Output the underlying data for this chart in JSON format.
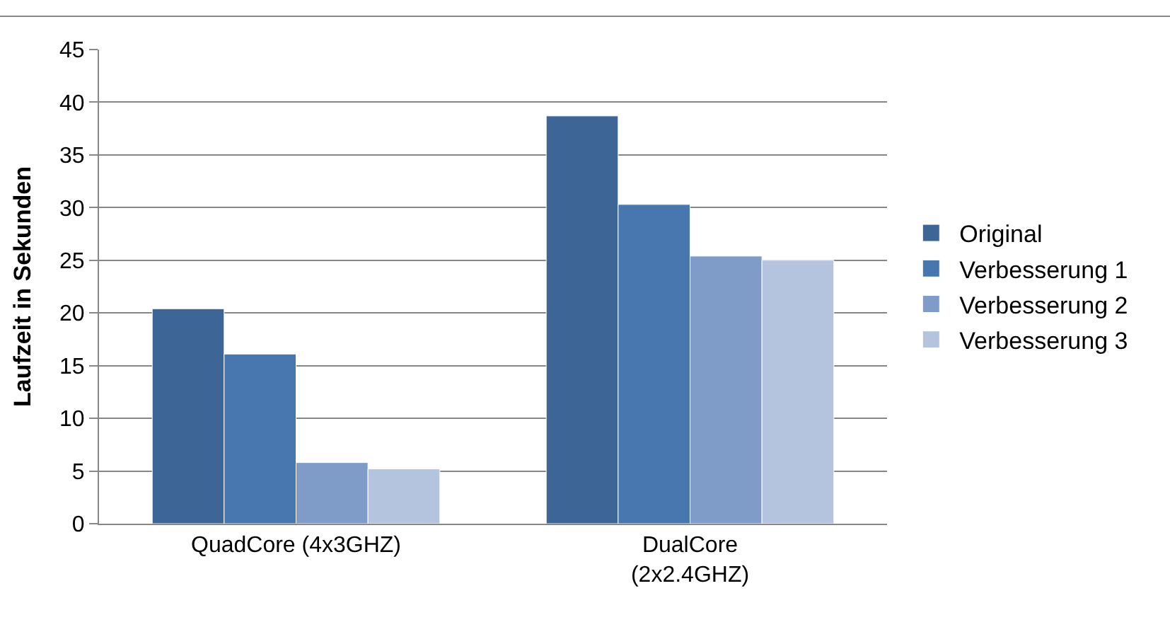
{
  "chart_data": {
    "type": "bar",
    "ylabel": "Laufzeit in Sekunden",
    "categories": [
      "QuadCore (4x3GHZ)",
      "DualCore\n(2x2.4GHZ)"
    ],
    "series": [
      {
        "name": "Original",
        "color": "#3d6697",
        "values": [
          20.4,
          38.7
        ]
      },
      {
        "name": "Verbesserung 1",
        "color": "#4877b0",
        "values": [
          16.1,
          30.3
        ]
      },
      {
        "name": "Verbesserung 2",
        "color": "#7f9cc8",
        "values": [
          5.8,
          25.4
        ]
      },
      {
        "name": "Verbesserung 3",
        "color": "#b4c4de",
        "values": [
          5.2,
          25.0
        ]
      }
    ],
    "ylim": [
      0,
      45
    ],
    "yticks": [
      0,
      5,
      10,
      15,
      20,
      25,
      30,
      35,
      40,
      45
    ],
    "grid": "y",
    "legend": "right"
  }
}
